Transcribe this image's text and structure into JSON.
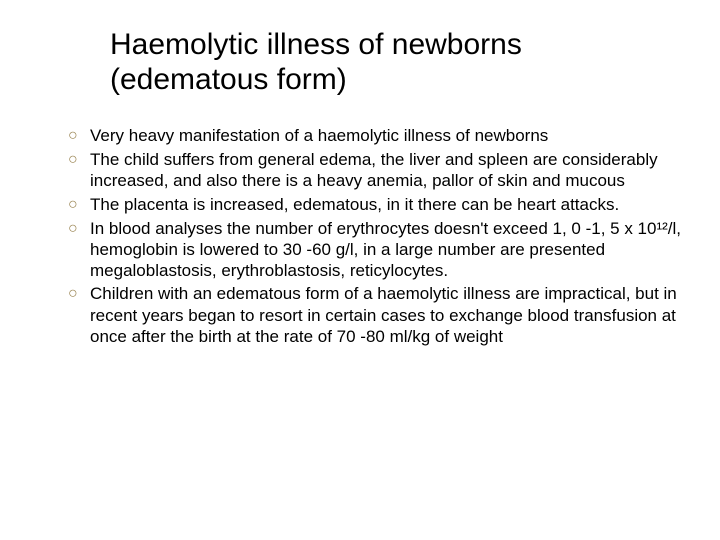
{
  "title_line1": "Haemolytic illness of newborns",
  "title_line2": "(edematous form)",
  "bullet_char": "○",
  "bullet_color": "#9b8654",
  "text_color": "#000000",
  "background_color": "#ffffff",
  "title_fontsize": 30,
  "body_fontsize": 17,
  "items": [
    "Very heavy manifestation of a haemolytic illness of newborns",
    "The child suffers from general edema, the liver and spleen are considerably increased, and also there is a heavy anemia, pallor of skin and mucous",
    "The placenta is increased, edematous, in it there can be heart attacks.",
    "In blood analyses the number of erythrocytes doesn't exceed 1, 0 -1, 5 х 10¹²/l, hemoglobin is lowered to 30 -60 g/l, in a large number are presented megaloblastosis, erythroblastosis, reticylocytes.",
    "Children with an edematous form of a haemolytic illness are impractical, but in recent years began to resort in certain cases to exchange blood transfusion at once after the birth at the rate of 70 -80 ml/kg of weight"
  ]
}
